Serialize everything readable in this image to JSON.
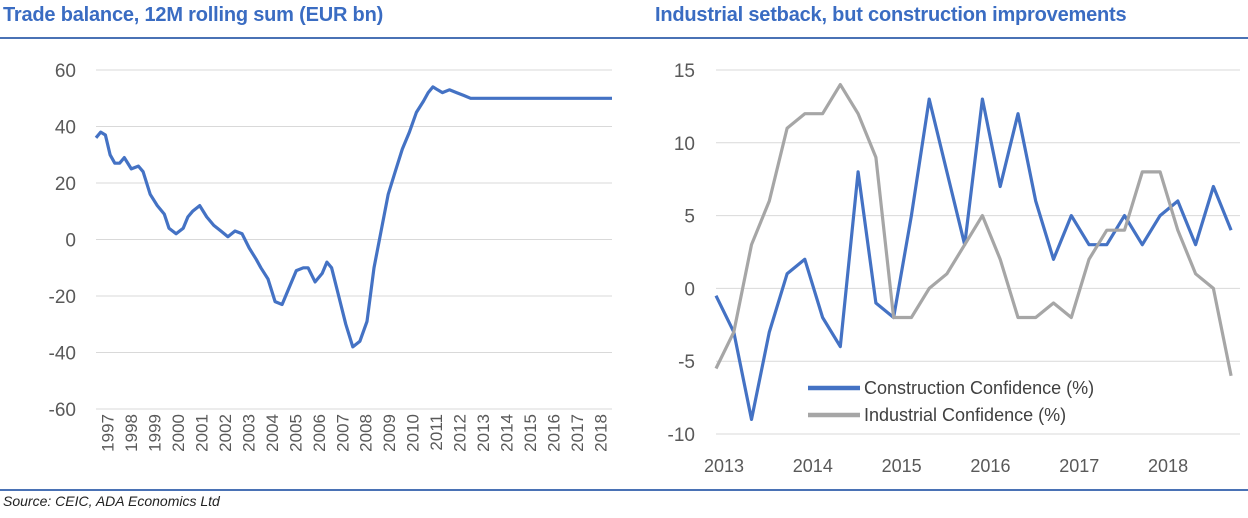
{
  "left_title": "Trade balance, 12M rolling sum (EUR bn)",
  "right_title": "Industrial setback, but construction improvements",
  "source": "Source: CEIC, ADA Economics Ltd",
  "chart_data": [
    {
      "type": "line",
      "title": "Trade balance, 12M rolling sum (EUR bn)",
      "ylim": [
        -60,
        60
      ],
      "yticks": [
        60,
        40,
        20,
        0,
        -20,
        -40,
        -60
      ],
      "xlim": [
        1997,
        2018.9
      ],
      "xticks": [
        "1997",
        "1998",
        "1999",
        "2000",
        "2001",
        "2002",
        "2003",
        "2004",
        "2005",
        "2006",
        "2007",
        "2008",
        "2009",
        "2010",
        "2011",
        "2012",
        "2013",
        "2014",
        "2015",
        "2016",
        "2017",
        "2018"
      ],
      "grid": true,
      "color": "#4472c4",
      "series": [
        {
          "x": [
            1997.0,
            1997.2,
            1997.4,
            1997.6,
            1997.8,
            1998.0,
            1998.2,
            1998.5,
            1998.8,
            1999.0,
            1999.3,
            1999.6,
            1999.9,
            2000.1,
            2000.4,
            2000.7,
            2000.9,
            2001.1,
            2001.4,
            2001.7,
            2002.0,
            2002.3,
            2002.6,
            2002.9,
            2003.2,
            2003.5,
            2003.8,
            2004.0,
            2004.3,
            2004.6,
            2004.9,
            2005.2,
            2005.5,
            2005.8,
            2006.0,
            2006.3,
            2006.6,
            2006.8,
            2007.0,
            2007.3,
            2007.6,
            2007.9,
            2008.2,
            2008.5,
            2008.8,
            2009.1,
            2009.4,
            2009.7,
            2010.0,
            2010.3,
            2010.6,
            2010.9,
            2011.1,
            2011.3,
            2011.5,
            2011.7,
            2012.0,
            2012.3,
            2012.6,
            2012.9,
            2013.2,
            2013.5,
            2013.8,
            2014.1,
            2014.4,
            2014.7,
            2015.0,
            2015.3,
            2015.6,
            2015.9,
            2016.2,
            2016.5,
            2016.8,
            2017.1,
            2017.4,
            2017.7,
            2018.0,
            2018.3,
            2018.6,
            2018.9
          ],
          "y": [
            36,
            38,
            37,
            30,
            27,
            27,
            29,
            25,
            26,
            24,
            16,
            12,
            9,
            4,
            2,
            4,
            8,
            10,
            12,
            8,
            5,
            3,
            1,
            3,
            2,
            -3,
            -7,
            -10,
            -14,
            -22,
            -23,
            -17,
            -11,
            -10,
            -10,
            -15,
            -12,
            -8,
            -10,
            -20,
            -30,
            -38,
            -36,
            -29,
            -10,
            3,
            16,
            24,
            32,
            38,
            45,
            49,
            52,
            54,
            53,
            52,
            53,
            52,
            51,
            50,
            50,
            50,
            50,
            50,
            50,
            50,
            50,
            50,
            50,
            50,
            50,
            50,
            50,
            50,
            50,
            50,
            50,
            50,
            50,
            50
          ]
        }
      ]
    },
    {
      "type": "line",
      "title": "Industrial setback, but construction improvements",
      "ylim": [
        -10,
        15
      ],
      "yticks": [
        15,
        10,
        5,
        0,
        -5,
        -10
      ],
      "xlim": [
        2013,
        2018.9
      ],
      "xticks": [
        "2013",
        "2014",
        "2015",
        "2016",
        "2017",
        "2018"
      ],
      "grid": true,
      "legend": "bottom-center",
      "series": [
        {
          "name": "Construction Confidence (%)",
          "color": "#4472c4",
          "x": [
            2013.0,
            2013.2,
            2013.4,
            2013.6,
            2013.8,
            2014.0,
            2014.2,
            2014.4,
            2014.6,
            2014.8,
            2015.0,
            2015.2,
            2015.4,
            2015.6,
            2015.8,
            2016.0,
            2016.2,
            2016.4,
            2016.6,
            2016.8,
            2017.0,
            2017.2,
            2017.4,
            2017.6,
            2017.8,
            2018.0,
            2018.2,
            2018.4,
            2018.6,
            2018.8
          ],
          "y": [
            -0.5,
            -3,
            -9,
            -3,
            1,
            2,
            -2,
            -4,
            8,
            -1,
            -2,
            5,
            13,
            8,
            3,
            13,
            7,
            12,
            6,
            2,
            5,
            3,
            3,
            5,
            3,
            5,
            6,
            3,
            7,
            4
          ]
        },
        {
          "name": "Industrial Confidence (%)",
          "color": "#a6a6a6",
          "x": [
            2013.0,
            2013.2,
            2013.4,
            2013.6,
            2013.8,
            2014.0,
            2014.2,
            2014.4,
            2014.6,
            2014.8,
            2015.0,
            2015.2,
            2015.4,
            2015.6,
            2015.8,
            2016.0,
            2016.2,
            2016.4,
            2016.6,
            2016.8,
            2017.0,
            2017.2,
            2017.4,
            2017.6,
            2017.8,
            2018.0,
            2018.2,
            2018.4,
            2018.6,
            2018.8
          ],
          "y": [
            -5.5,
            -3,
            3,
            6,
            11,
            12,
            12,
            14,
            12,
            9,
            -2,
            -2,
            0,
            1,
            3,
            5,
            2,
            -2,
            -2,
            -1,
            -2,
            2,
            4,
            4,
            8,
            8,
            4,
            1,
            0,
            -6
          ]
        }
      ]
    }
  ]
}
